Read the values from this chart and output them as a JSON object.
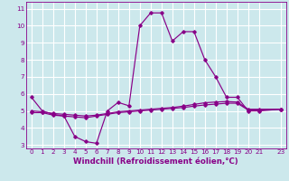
{
  "xlabel": "Windchill (Refroidissement éolien,°C)",
  "bg_color": "#cce8ec",
  "line_color": "#880088",
  "grid_color": "#ffffff",
  "line1_x": [
    0,
    1,
    2,
    3,
    4,
    5,
    6,
    7,
    8,
    9,
    10,
    11,
    12,
    13,
    14,
    15,
    16,
    17,
    18,
    19,
    20,
    21,
    23
  ],
  "line1_y": [
    5.8,
    5.0,
    4.8,
    4.7,
    3.5,
    3.2,
    3.1,
    5.0,
    5.5,
    5.3,
    10.0,
    10.75,
    10.75,
    9.1,
    9.65,
    9.65,
    8.0,
    7.0,
    5.8,
    5.8,
    5.0,
    5.0,
    5.1
  ],
  "line2_x": [
    0,
    1,
    2,
    3,
    4,
    5,
    6,
    7,
    8,
    9,
    10,
    11,
    12,
    13,
    14,
    15,
    16,
    17,
    18,
    19,
    20,
    21,
    23
  ],
  "line2_y": [
    4.9,
    4.9,
    4.75,
    4.7,
    4.65,
    4.6,
    4.7,
    4.8,
    4.9,
    4.95,
    5.0,
    5.05,
    5.1,
    5.15,
    5.2,
    5.28,
    5.35,
    5.4,
    5.45,
    5.45,
    5.05,
    5.05,
    5.1
  ],
  "line3_x": [
    0,
    1,
    2,
    3,
    4,
    5,
    6,
    7,
    8,
    9,
    10,
    11,
    12,
    13,
    14,
    15,
    16,
    17,
    18,
    19,
    20,
    21,
    23
  ],
  "line3_y": [
    5.0,
    4.95,
    4.85,
    4.8,
    4.75,
    4.7,
    4.75,
    4.85,
    4.95,
    5.0,
    5.05,
    5.1,
    5.15,
    5.2,
    5.28,
    5.38,
    5.48,
    5.52,
    5.55,
    5.52,
    5.1,
    5.1,
    5.1
  ],
  "xlim": [
    -0.5,
    23.5
  ],
  "ylim": [
    2.8,
    11.4
  ],
  "xticks": [
    0,
    1,
    2,
    3,
    4,
    5,
    6,
    7,
    8,
    9,
    10,
    11,
    12,
    13,
    14,
    15,
    16,
    17,
    18,
    19,
    20,
    21,
    23
  ],
  "yticks": [
    3,
    4,
    5,
    6,
    7,
    8,
    9,
    10,
    11
  ],
  "tick_fontsize": 5.2,
  "xlabel_fontsize": 6.2,
  "markersize": 1.8,
  "linewidth": 0.85
}
